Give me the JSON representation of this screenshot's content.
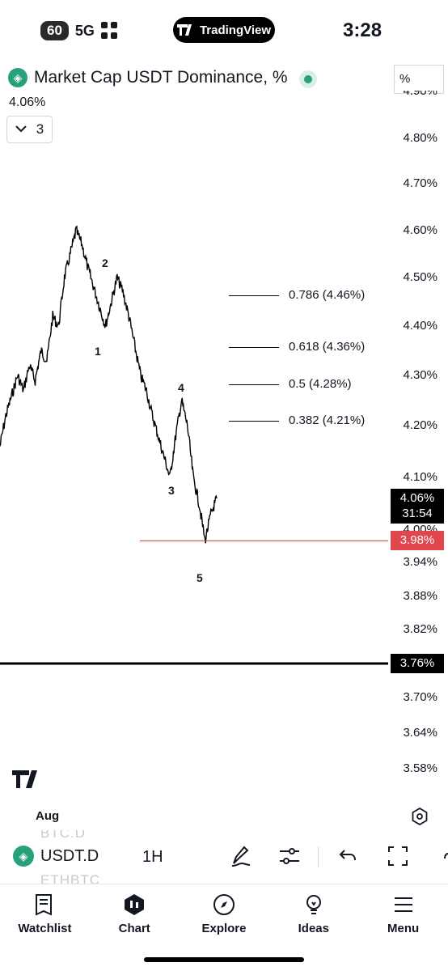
{
  "status_bar": {
    "battery": "60",
    "network": "5G",
    "app_pill": "TradingView",
    "time": "3:28"
  },
  "chart_header": {
    "title": "Market Cap USDT Dominance, %",
    "scale_button": "%",
    "last_value": "4.06%",
    "indicators_count": "3"
  },
  "chart_data": {
    "type": "line",
    "title": "Market Cap USDT Dominance, %",
    "ylabel": "%",
    "y_axis_ticks": [
      "4.90%",
      "4.80%",
      "4.70%",
      "4.60%",
      "4.50%",
      "4.40%",
      "4.30%",
      "4.20%",
      "4.10%",
      "4.00%",
      "3.94%",
      "3.88%",
      "3.82%",
      "3.70%",
      "3.64%",
      "3.58%"
    ],
    "x_axis_ticks": [
      "Aug"
    ],
    "current_price": "4.06%",
    "countdown": "31:54",
    "support_level": "3.98%",
    "lower_level": "3.76%",
    "fib_retracements": [
      {
        "ratio": "0.786",
        "value": 4.46,
        "label": "0.786 (4.46%)"
      },
      {
        "ratio": "0.618",
        "value": 4.36,
        "label": "0.618 (4.36%)"
      },
      {
        "ratio": "0.5",
        "value": 4.28,
        "label": "0.5 (4.28%)"
      },
      {
        "ratio": "0.382",
        "value": 4.21,
        "label": "0.382 (4.21%)"
      }
    ],
    "wave_labels": [
      "1",
      "2",
      "3",
      "4",
      "5"
    ],
    "series": [
      {
        "values": [
          4.16,
          4.22,
          4.26,
          4.3,
          4.27,
          4.32,
          4.29,
          4.35,
          4.33,
          4.42,
          4.4,
          4.5,
          4.55,
          4.6,
          4.57,
          4.52,
          4.48,
          4.44,
          4.4,
          4.45,
          4.5,
          4.47,
          4.42,
          4.36,
          4.3,
          4.27,
          4.22,
          4.18,
          4.14,
          4.1,
          4.18,
          4.25,
          4.2,
          4.1,
          4.05,
          3.98,
          4.03,
          4.06
        ]
      }
    ],
    "grid": false,
    "colors": {
      "line": "#000000",
      "support": "#e0474c",
      "price_label": "#000000"
    }
  },
  "symbol_toolbar": {
    "symbol": "USDT.D",
    "interval": "1H",
    "ghost_symbols": [
      "BTC.D",
      "ETHBTC"
    ]
  },
  "bottom_nav": {
    "items": [
      {
        "label": "Watchlist",
        "icon": "watchlist-icon"
      },
      {
        "label": "Chart",
        "icon": "chart-icon"
      },
      {
        "label": "Explore",
        "icon": "explore-icon"
      },
      {
        "label": "Ideas",
        "icon": "ideas-icon"
      },
      {
        "label": "Menu",
        "icon": "menu-icon"
      }
    ]
  }
}
